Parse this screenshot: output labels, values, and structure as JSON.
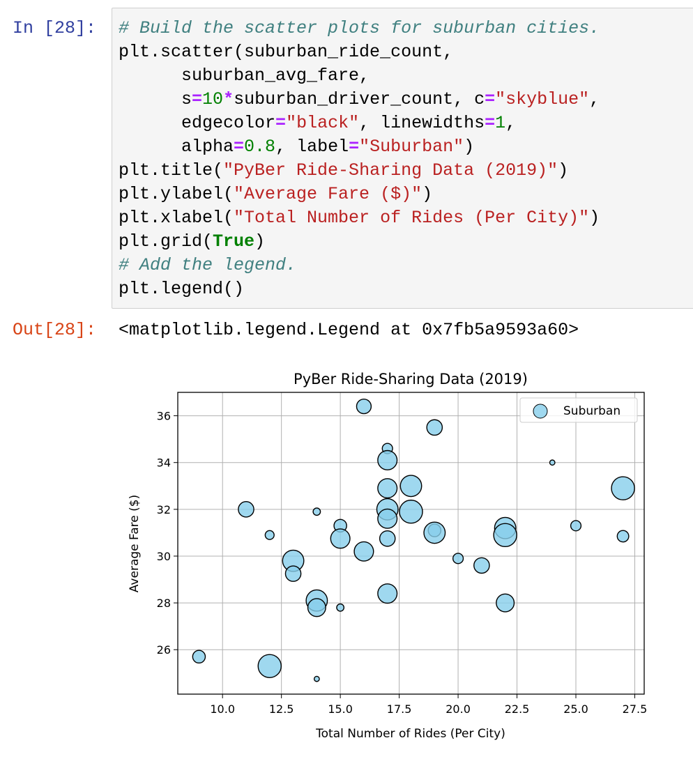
{
  "cell": {
    "in_prompt": "In [28]:",
    "out_prompt": "Out[28]:",
    "output_text": "<matplotlib.legend.Legend at 0x7fb5a9593a60>",
    "code_lines": [
      [
        {
          "t": "# Build the scatter plots for suburban cities.",
          "c": "cm"
        }
      ],
      [
        {
          "t": "plt.scatter(suburban_ride_count,",
          "c": ""
        }
      ],
      [
        {
          "t": "      suburban_avg_fare,",
          "c": ""
        }
      ],
      [
        {
          "t": "      s",
          "c": ""
        },
        {
          "t": "=",
          "c": "op"
        },
        {
          "t": "10",
          "c": "nu"
        },
        {
          "t": "*",
          "c": "op"
        },
        {
          "t": "suburban_driver_count, c",
          "c": ""
        },
        {
          "t": "=",
          "c": "op"
        },
        {
          "t": "\"skyblue\"",
          "c": "st"
        },
        {
          "t": ",",
          "c": ""
        }
      ],
      [
        {
          "t": "      edgecolor",
          "c": ""
        },
        {
          "t": "=",
          "c": "op"
        },
        {
          "t": "\"black\"",
          "c": "st"
        },
        {
          "t": ", linewidths",
          "c": ""
        },
        {
          "t": "=",
          "c": "op"
        },
        {
          "t": "1",
          "c": "nu"
        },
        {
          "t": ",",
          "c": ""
        }
      ],
      [
        {
          "t": "      alpha",
          "c": ""
        },
        {
          "t": "=",
          "c": "op"
        },
        {
          "t": "0.8",
          "c": "nu"
        },
        {
          "t": ", label",
          "c": ""
        },
        {
          "t": "=",
          "c": "op"
        },
        {
          "t": "\"Suburban\"",
          "c": "st"
        },
        {
          "t": ")",
          "c": ""
        }
      ],
      [
        {
          "t": "plt.title(",
          "c": ""
        },
        {
          "t": "\"PyBer Ride-Sharing Data (2019)\"",
          "c": "st"
        },
        {
          "t": ")",
          "c": ""
        }
      ],
      [
        {
          "t": "plt.ylabel(",
          "c": ""
        },
        {
          "t": "\"Average Fare ($)\"",
          "c": "st"
        },
        {
          "t": ")",
          "c": ""
        }
      ],
      [
        {
          "t": "plt.xlabel(",
          "c": ""
        },
        {
          "t": "\"Total Number of Rides (Per City)\"",
          "c": "st"
        },
        {
          "t": ")",
          "c": ""
        }
      ],
      [
        {
          "t": "plt.grid(",
          "c": ""
        },
        {
          "t": "True",
          "c": "kw"
        },
        {
          "t": ")",
          "c": ""
        }
      ],
      [
        {
          "t": "# Add the legend.",
          "c": "cm"
        }
      ],
      [
        {
          "t": "plt.legend()",
          "c": ""
        }
      ]
    ]
  },
  "colors": {
    "marker_fill": "#87ceeb",
    "marker_edge": "#000000",
    "grid": "#b0b0b0"
  },
  "chart_data": {
    "type": "scatter",
    "title": "PyBer Ride-Sharing Data (2019)",
    "xlabel": "Total Number of Rides (Per City)",
    "ylabel": "Average Fare ($)",
    "xlim": [
      8.1,
      27.9
    ],
    "ylim": [
      24.1,
      37.0
    ],
    "xticks": [
      10.0,
      12.5,
      15.0,
      17.5,
      20.0,
      22.5,
      25.0,
      27.5
    ],
    "xtick_labels": [
      "10.0",
      "12.5",
      "15.0",
      "17.5",
      "20.0",
      "22.5",
      "25.0",
      "27.5"
    ],
    "yticks": [
      26,
      28,
      30,
      32,
      34,
      36
    ],
    "ytick_labels": [
      "26",
      "28",
      "30",
      "32",
      "34",
      "36"
    ],
    "grid": true,
    "legend_position": "top-right",
    "series": [
      {
        "name": "Suburban",
        "points": [
          {
            "x": 16,
            "y": 36.4,
            "d": 8
          },
          {
            "x": 19,
            "y": 35.5,
            "d": 9
          },
          {
            "x": 17,
            "y": 34.6,
            "d": 4
          },
          {
            "x": 17,
            "y": 34.1,
            "d": 14
          },
          {
            "x": 24,
            "y": 34.0,
            "d": 1
          },
          {
            "x": 18,
            "y": 33.0,
            "d": 17
          },
          {
            "x": 27,
            "y": 32.9,
            "d": 20
          },
          {
            "x": 17,
            "y": 32.9,
            "d": 14
          },
          {
            "x": 11,
            "y": 32.0,
            "d": 9
          },
          {
            "x": 14,
            "y": 31.9,
            "d": 2
          },
          {
            "x": 18,
            "y": 31.9,
            "d": 20
          },
          {
            "x": 17,
            "y": 32.0,
            "d": 17
          },
          {
            "x": 17,
            "y": 31.6,
            "d": 14
          },
          {
            "x": 22,
            "y": 31.2,
            "d": 17
          },
          {
            "x": 15,
            "y": 31.3,
            "d": 6
          },
          {
            "x": 25,
            "y": 31.3,
            "d": 4
          },
          {
            "x": 19,
            "y": 31.1,
            "d": 6
          },
          {
            "x": 19,
            "y": 31.0,
            "d": 17
          },
          {
            "x": 22,
            "y": 30.9,
            "d": 20
          },
          {
            "x": 12,
            "y": 30.9,
            "d": 3
          },
          {
            "x": 27,
            "y": 30.85,
            "d": 5
          },
          {
            "x": 15,
            "y": 30.75,
            "d": 14
          },
          {
            "x": 17,
            "y": 30.75,
            "d": 9
          },
          {
            "x": 16,
            "y": 30.2,
            "d": 14
          },
          {
            "x": 20,
            "y": 29.9,
            "d": 4
          },
          {
            "x": 13,
            "y": 29.8,
            "d": 17
          },
          {
            "x": 21,
            "y": 29.6,
            "d": 9
          },
          {
            "x": 13,
            "y": 29.25,
            "d": 9
          },
          {
            "x": 17,
            "y": 28.4,
            "d": 14
          },
          {
            "x": 14,
            "y": 28.1,
            "d": 17
          },
          {
            "x": 22,
            "y": 28.0,
            "d": 12
          },
          {
            "x": 14,
            "y": 27.8,
            "d": 12
          },
          {
            "x": 15,
            "y": 27.8,
            "d": 2
          },
          {
            "x": 9,
            "y": 25.7,
            "d": 6
          },
          {
            "x": 12,
            "y": 25.3,
            "d": 20
          },
          {
            "x": 14,
            "y": 24.75,
            "d": 1
          }
        ]
      }
    ]
  }
}
